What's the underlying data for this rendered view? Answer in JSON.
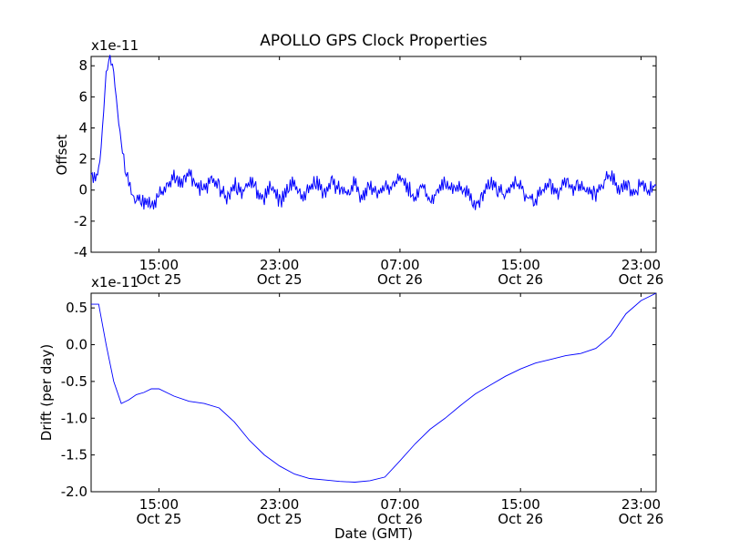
{
  "title": "APOLLO GPS Clock Properties",
  "colors": {
    "line": "#0000ff",
    "axis": "#000000",
    "background": "#ffffff"
  },
  "chart_data": [
    {
      "type": "line",
      "title": "APOLLO GPS Clock Properties",
      "ylabel": "Offset",
      "xlabel": "",
      "scale_label": "x1e-11",
      "x_range": [
        "2012-10-25 10:30",
        "2012-10-27 00:00"
      ],
      "ylim": [
        -4,
        8.6
      ],
      "yticks": [
        -4,
        -2,
        0,
        2,
        4,
        6,
        8
      ],
      "ytick_labels": [
        "-4",
        "-2",
        "0",
        "2",
        "4",
        "6",
        "8"
      ],
      "xticks": [
        "2012-10-25 15:00",
        "2012-10-25 23:00",
        "2012-10-26 07:00",
        "2012-10-26 15:00",
        "2012-10-26 23:00"
      ],
      "xtick_labels": [
        {
          "time": "15:00",
          "date": "Oct 25"
        },
        {
          "time": "23:00",
          "date": "Oct 25"
        },
        {
          "time": "07:00",
          "date": "Oct 26"
        },
        {
          "time": "15:00",
          "date": "Oct 26"
        },
        {
          "time": "23:00",
          "date": "Oct 26"
        }
      ],
      "grid": false,
      "series": [
        {
          "x": [
            "2012-10-25 10:30",
            "2012-10-25 11:00",
            "2012-10-25 11:15",
            "2012-10-25 11:30",
            "2012-10-25 11:45",
            "2012-10-25 12:00",
            "2012-10-25 12:15",
            "2012-10-25 12:30",
            "2012-10-25 12:45",
            "2012-10-25 13:00",
            "2012-10-25 13:15",
            "2012-10-25 13:30",
            "2012-10-25 14:00",
            "2012-10-25 14:30",
            "2012-10-25 15:00",
            "2012-10-25 15:30",
            "2012-10-25 16:00",
            "2012-10-25 16:30",
            "2012-10-25 17:00",
            "2012-10-25 17:30",
            "2012-10-25 18:00",
            "2012-10-25 18:30",
            "2012-10-25 19:00",
            "2012-10-25 19:30",
            "2012-10-25 20:00",
            "2012-10-25 20:30",
            "2012-10-25 21:00",
            "2012-10-25 21:30",
            "2012-10-25 22:00",
            "2012-10-25 22:30",
            "2012-10-25 23:00",
            "2012-10-25 23:30",
            "2012-10-26 00:00",
            "2012-10-26 00:30",
            "2012-10-26 01:00",
            "2012-10-26 01:30",
            "2012-10-26 02:00",
            "2012-10-26 02:30",
            "2012-10-26 03:00",
            "2012-10-26 03:30",
            "2012-10-26 04:00",
            "2012-10-26 04:30",
            "2012-10-26 05:00",
            "2012-10-26 05:30",
            "2012-10-26 06:00",
            "2012-10-26 06:30",
            "2012-10-26 07:00",
            "2012-10-26 07:30",
            "2012-10-26 08:00",
            "2012-10-26 08:30",
            "2012-10-26 09:00",
            "2012-10-26 09:30",
            "2012-10-26 10:00",
            "2012-10-26 10:30",
            "2012-10-26 11:00",
            "2012-10-26 11:30",
            "2012-10-26 12:00",
            "2012-10-26 12:30",
            "2012-10-26 13:00",
            "2012-10-26 13:30",
            "2012-10-26 14:00",
            "2012-10-26 14:30",
            "2012-10-26 15:00",
            "2012-10-26 15:30",
            "2012-10-26 16:00",
            "2012-10-26 16:30",
            "2012-10-26 17:00",
            "2012-10-26 17:30",
            "2012-10-26 18:00",
            "2012-10-26 18:30",
            "2012-10-26 19:00",
            "2012-10-26 19:30",
            "2012-10-26 20:00",
            "2012-10-26 20:30",
            "2012-10-26 21:00",
            "2012-10-26 21:30",
            "2012-10-26 22:00",
            "2012-10-26 22:30",
            "2012-10-26 23:00",
            "2012-10-26 23:30",
            "2012-10-27 00:00"
          ],
          "y": [
            1.0,
            1.0,
            4.0,
            7.5,
            8.6,
            7.5,
            5.0,
            3.0,
            1.5,
            0.5,
            -0.3,
            -0.6,
            -0.8,
            -1.0,
            -0.3,
            0.2,
            0.8,
            0.5,
            1.0,
            0.3,
            0.0,
            0.6,
            0.2,
            -0.6,
            0.4,
            -0.2,
            0.5,
            0.0,
            -0.5,
            0.3,
            -0.8,
            0.0,
            0.5,
            -0.5,
            0.2,
            0.6,
            -0.4,
            0.4,
            0.0,
            -0.2,
            0.5,
            -0.6,
            0.3,
            -0.1,
            0.4,
            0.0,
            0.8,
            0.2,
            -0.5,
            0.3,
            -0.9,
            0.0,
            0.5,
            0.0,
            0.3,
            -0.3,
            -1.0,
            -0.3,
            0.6,
            0.0,
            -0.4,
            0.5,
            0.2,
            -0.5,
            -0.6,
            0.0,
            0.3,
            -0.2,
            0.5,
            0.0,
            0.3,
            0.0,
            -0.3,
            0.6,
            1.0,
            0.0,
            0.5,
            -0.3,
            0.4,
            0.0,
            0.3
          ]
        }
      ]
    },
    {
      "type": "line",
      "ylabel": "Drift (per day)",
      "xlabel": "Date (GMT)",
      "scale_label": "x1e-11",
      "x_range": [
        "2012-10-25 10:30",
        "2012-10-27 00:00"
      ],
      "ylim": [
        -2.0,
        0.7
      ],
      "yticks": [
        -2.0,
        -1.5,
        -1.0,
        -0.5,
        0.0,
        0.5
      ],
      "ytick_labels": [
        "-2.0",
        "-1.5",
        "-1.0",
        "-0.5",
        "0.0",
        "0.5"
      ],
      "xticks": [
        "2012-10-25 15:00",
        "2012-10-25 23:00",
        "2012-10-26 07:00",
        "2012-10-26 15:00",
        "2012-10-26 23:00"
      ],
      "xtick_labels": [
        {
          "time": "15:00",
          "date": "Oct 25"
        },
        {
          "time": "23:00",
          "date": "Oct 25"
        },
        {
          "time": "07:00",
          "date": "Oct 26"
        },
        {
          "time": "15:00",
          "date": "Oct 26"
        },
        {
          "time": "23:00",
          "date": "Oct 26"
        }
      ],
      "grid": false,
      "series": [
        {
          "x": [
            "2012-10-25 10:30",
            "2012-10-25 11:00",
            "2012-10-25 11:30",
            "2012-10-25 12:00",
            "2012-10-25 12:30",
            "2012-10-25 13:00",
            "2012-10-25 13:30",
            "2012-10-25 14:00",
            "2012-10-25 14:30",
            "2012-10-25 15:00",
            "2012-10-25 16:00",
            "2012-10-25 17:00",
            "2012-10-25 18:00",
            "2012-10-25 19:00",
            "2012-10-25 20:00",
            "2012-10-25 21:00",
            "2012-10-25 22:00",
            "2012-10-25 23:00",
            "2012-10-26 00:00",
            "2012-10-26 01:00",
            "2012-10-26 02:00",
            "2012-10-26 03:00",
            "2012-10-26 04:00",
            "2012-10-26 05:00",
            "2012-10-26 06:00",
            "2012-10-26 07:00",
            "2012-10-26 08:00",
            "2012-10-26 09:00",
            "2012-10-26 10:00",
            "2012-10-26 11:00",
            "2012-10-26 12:00",
            "2012-10-26 13:00",
            "2012-10-26 14:00",
            "2012-10-26 15:00",
            "2012-10-26 16:00",
            "2012-10-26 17:00",
            "2012-10-26 18:00",
            "2012-10-26 19:00",
            "2012-10-26 20:00",
            "2012-10-26 21:00",
            "2012-10-26 22:00",
            "2012-10-26 23:00",
            "2012-10-27 00:00"
          ],
          "y": [
            0.55,
            0.55,
            0.0,
            -0.5,
            -0.8,
            -0.75,
            -0.68,
            -0.65,
            -0.6,
            -0.6,
            -0.7,
            -0.77,
            -0.8,
            -0.86,
            -1.05,
            -1.3,
            -1.5,
            -1.65,
            -1.76,
            -1.82,
            -1.84,
            -1.86,
            -1.87,
            -1.85,
            -1.8,
            -1.58,
            -1.35,
            -1.15,
            -1.0,
            -0.83,
            -0.67,
            -0.55,
            -0.43,
            -0.33,
            -0.25,
            -0.2,
            -0.15,
            -0.12,
            -0.05,
            0.12,
            0.42,
            0.6,
            0.7
          ]
        }
      ]
    }
  ]
}
